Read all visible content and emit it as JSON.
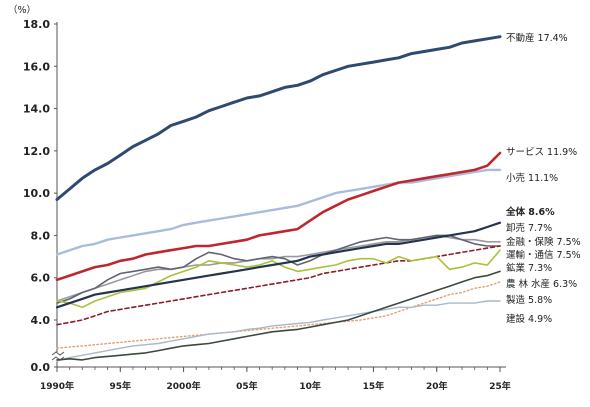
{
  "chart_data": {
    "type": "line",
    "unit_label": "（%）",
    "x": [
      1990,
      1991,
      1992,
      1993,
      1994,
      1995,
      1996,
      1997,
      1998,
      1999,
      2000,
      2001,
      2002,
      2003,
      2004,
      2005,
      2006,
      2007,
      2008,
      2009,
      2010,
      2011,
      2012,
      2013,
      2014,
      2015,
      2016,
      2017,
      2018,
      2019,
      2020,
      2021,
      2022,
      2023,
      2024,
      2025
    ],
    "xticks": [
      {
        "value": 1990,
        "label": "1990年"
      },
      {
        "value": 1995,
        "label": "95年"
      },
      {
        "value": 2000,
        "label": "2000年"
      },
      {
        "value": 2005,
        "label": "05年"
      },
      {
        "value": 2010,
        "label": "10年"
      },
      {
        "value": 2015,
        "label": "15年"
      },
      {
        "value": 2020,
        "label": "20年"
      },
      {
        "value": 2025,
        "label": "25年"
      }
    ],
    "yticks": [
      {
        "value": 0,
        "label": "0.0"
      },
      {
        "value": 4,
        "label": "4.0"
      },
      {
        "value": 6,
        "label": "6.0"
      },
      {
        "value": 8,
        "label": "8.0"
      },
      {
        "value": 10,
        "label": "10.0"
      },
      {
        "value": 12,
        "label": "12.0"
      },
      {
        "value": 14,
        "label": "14.0"
      },
      {
        "value": 16,
        "label": "16.0"
      },
      {
        "value": 18,
        "label": "18.0"
      }
    ],
    "ylim": [
      0,
      18
    ],
    "axis_break": true,
    "grid": false,
    "legend": "direct labels at right end",
    "series": [
      {
        "name": "不動産 17.4%",
        "color": "#2e4a72",
        "width": 3,
        "dash": "",
        "values": [
          9.7,
          10.2,
          10.7,
          11.1,
          11.4,
          11.8,
          12.2,
          12.5,
          12.8,
          13.2,
          13.4,
          13.6,
          13.9,
          14.1,
          14.3,
          14.5,
          14.6,
          14.8,
          15.0,
          15.1,
          15.3,
          15.6,
          15.8,
          16.0,
          16.1,
          16.2,
          16.3,
          16.4,
          16.6,
          16.7,
          16.8,
          16.9,
          17.1,
          17.2,
          17.3,
          17.4
        ]
      },
      {
        "name": "サービス 11.9%",
        "color": "#c0272d",
        "width": 2.6,
        "dash": "",
        "values": [
          5.9,
          6.1,
          6.3,
          6.5,
          6.6,
          6.8,
          6.9,
          7.1,
          7.2,
          7.3,
          7.4,
          7.5,
          7.5,
          7.6,
          7.7,
          7.8,
          8.0,
          8.1,
          8.2,
          8.3,
          8.7,
          9.1,
          9.4,
          9.7,
          9.9,
          10.1,
          10.3,
          10.5,
          10.6,
          10.7,
          10.8,
          10.9,
          11.0,
          11.1,
          11.3,
          11.9
        ]
      },
      {
        "name": "小売 11.1%",
        "color": "#a9bcdc",
        "width": 2.4,
        "dash": "",
        "values": [
          7.1,
          7.3,
          7.5,
          7.6,
          7.8,
          7.9,
          8.0,
          8.1,
          8.2,
          8.3,
          8.5,
          8.6,
          8.7,
          8.8,
          8.9,
          9.0,
          9.1,
          9.2,
          9.3,
          9.4,
          9.6,
          9.8,
          10.0,
          10.1,
          10.2,
          10.3,
          10.4,
          10.5,
          10.5,
          10.6,
          10.7,
          10.8,
          10.9,
          11.0,
          11.1,
          11.1
        ]
      },
      {
        "name": "全体 8.6%",
        "color": "#25344d",
        "width": 2.2,
        "dash": "",
        "values": [
          4.6,
          4.8,
          5.0,
          5.2,
          5.3,
          5.4,
          5.5,
          5.6,
          5.7,
          5.8,
          5.9,
          6.0,
          6.1,
          6.2,
          6.3,
          6.4,
          6.5,
          6.6,
          6.7,
          6.8,
          7.0,
          7.1,
          7.2,
          7.3,
          7.4,
          7.5,
          7.6,
          7.6,
          7.7,
          7.8,
          7.9,
          8.0,
          8.1,
          8.2,
          8.4,
          8.6
        ]
      },
      {
        "name": "卸売 7.7%",
        "color": "#9a9a9a",
        "width": 1.6,
        "dash": "",
        "values": [
          4.9,
          5.1,
          5.3,
          5.5,
          5.7,
          5.9,
          6.1,
          6.3,
          6.4,
          6.4,
          6.5,
          6.6,
          6.6,
          6.7,
          6.7,
          6.8,
          6.9,
          6.9,
          7.0,
          7.0,
          7.1,
          7.2,
          7.3,
          7.4,
          7.5,
          7.6,
          7.7,
          7.7,
          7.8,
          7.9,
          8.0,
          7.9,
          7.8,
          7.8,
          7.7,
          7.7
        ]
      },
      {
        "name": "金融・保険 7.5%",
        "color": "#5f6670",
        "width": 1.6,
        "dash": "",
        "values": [
          4.8,
          5.0,
          5.3,
          5.5,
          5.9,
          6.2,
          6.3,
          6.4,
          6.5,
          6.4,
          6.5,
          6.9,
          7.2,
          7.1,
          6.9,
          6.8,
          6.9,
          7.0,
          6.9,
          6.6,
          6.8,
          7.1,
          7.3,
          7.5,
          7.7,
          7.8,
          7.9,
          7.8,
          7.8,
          7.9,
          8.0,
          8.0,
          7.8,
          7.6,
          7.5,
          7.5
        ]
      },
      {
        "name": "運輸・通信 7.5%",
        "color": "#8b1e2a",
        "width": 1.6,
        "dash": "4,3",
        "values": [
          3.6,
          3.8,
          4.0,
          4.2,
          4.4,
          4.5,
          4.6,
          4.7,
          4.8,
          4.9,
          5.0,
          5.1,
          5.2,
          5.3,
          5.4,
          5.5,
          5.6,
          5.7,
          5.8,
          5.9,
          6.0,
          6.2,
          6.3,
          6.4,
          6.5,
          6.6,
          6.7,
          6.8,
          6.8,
          6.9,
          7.0,
          7.1,
          7.2,
          7.3,
          7.4,
          7.5
        ]
      },
      {
        "name": "鉱業 7.3%",
        "color": "#a9c23a",
        "width": 1.6,
        "dash": "",
        "values": [
          4.9,
          4.8,
          4.6,
          4.9,
          5.1,
          5.3,
          5.4,
          5.5,
          5.8,
          6.1,
          6.3,
          6.5,
          6.8,
          6.7,
          6.6,
          6.5,
          6.6,
          6.8,
          6.5,
          6.3,
          6.4,
          6.5,
          6.6,
          6.8,
          6.9,
          6.9,
          6.7,
          7.0,
          6.8,
          6.9,
          7.0,
          6.4,
          6.5,
          6.7,
          6.6,
          7.3
        ]
      },
      {
        "name": "農 林 水産 6.3%",
        "color": "#3b4a3c",
        "width": 1.6,
        "dash": "",
        "values": [
          0.6,
          0.7,
          0.6,
          0.8,
          0.9,
          1.0,
          1.1,
          1.2,
          1.4,
          1.6,
          1.8,
          1.9,
          2.0,
          2.2,
          2.4,
          2.6,
          2.8,
          3.0,
          3.1,
          3.2,
          3.4,
          3.6,
          3.8,
          4.0,
          4.2,
          4.4,
          4.6,
          4.8,
          5.0,
          5.2,
          5.4,
          5.6,
          5.8,
          6.0,
          6.1,
          6.3
        ]
      },
      {
        "name": "製造 5.8%",
        "color": "#e0a070",
        "width": 1.4,
        "dash": "1.5,2.5",
        "values": [
          1.6,
          1.7,
          1.8,
          1.9,
          2.0,
          2.1,
          2.2,
          2.3,
          2.4,
          2.5,
          2.6,
          2.7,
          2.8,
          2.9,
          3.0,
          3.1,
          3.2,
          3.3,
          3.4,
          3.5,
          3.6,
          3.7,
          3.8,
          3.9,
          4.0,
          4.1,
          4.2,
          4.4,
          4.6,
          4.8,
          5.0,
          5.2,
          5.3,
          5.5,
          5.6,
          5.8
        ]
      },
      {
        "name": "建設 4.9%",
        "color": "#aab8c9",
        "width": 1.4,
        "dash": "",
        "values": [
          0.5,
          0.8,
          1.0,
          1.2,
          1.4,
          1.6,
          1.8,
          1.9,
          2.0,
          2.2,
          2.4,
          2.6,
          2.8,
          2.9,
          3.0,
          3.2,
          3.3,
          3.5,
          3.6,
          3.7,
          3.8,
          4.0,
          4.1,
          4.2,
          4.3,
          4.4,
          4.5,
          4.6,
          4.6,
          4.7,
          4.7,
          4.8,
          4.8,
          4.8,
          4.9,
          4.9
        ]
      }
    ],
    "label_colors": {
      "全体 8.6%": "#7a9cc8"
    }
  }
}
